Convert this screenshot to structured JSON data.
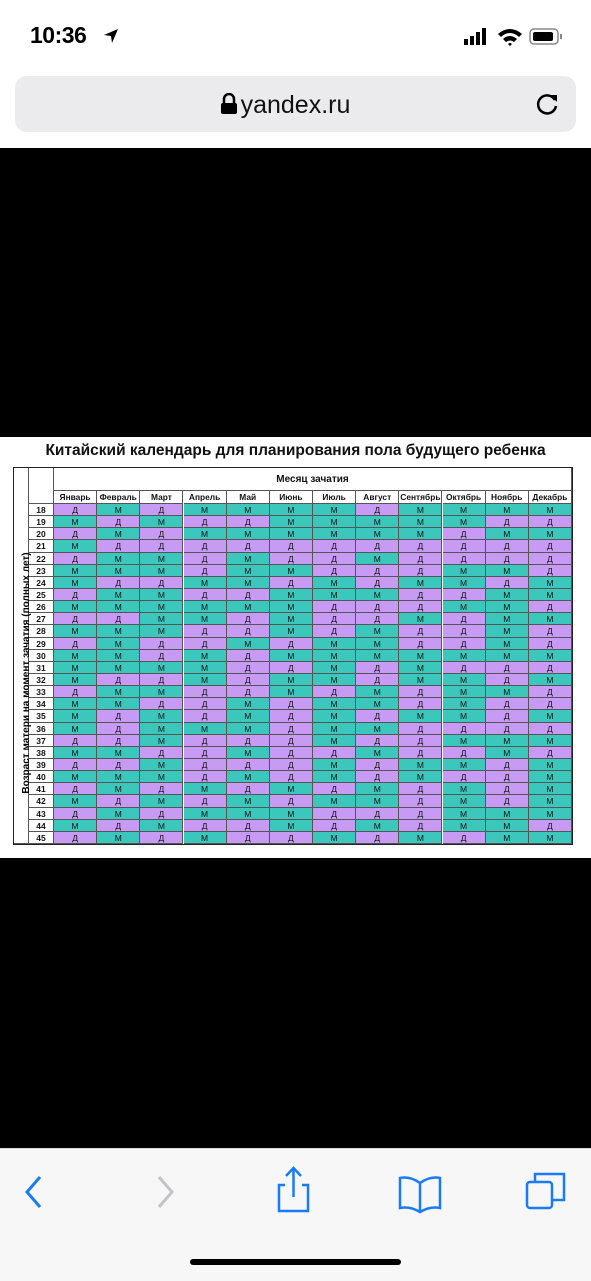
{
  "status": {
    "time": "10:36"
  },
  "browser": {
    "url": "yandex.ru"
  },
  "table": {
    "title": "Китайский календарь для планирования пола будущего ребенка",
    "column_group": "Месяц зачатия",
    "row_group": "Возраст матери на момент зачатия (полных лет)",
    "months": [
      "Январь",
      "Февраль",
      "Март",
      "Апрель",
      "Май",
      "Июнь",
      "Июль",
      "Август",
      "Сентябрь",
      "Октябрь",
      "Ноябрь",
      "Декабрь"
    ],
    "rows": [
      {
        "age": "18",
        "cells": [
          "Д",
          "М",
          "Д",
          "М",
          "М",
          "М",
          "М",
          "Д",
          "М",
          "М",
          "М",
          "М"
        ]
      },
      {
        "age": "19",
        "cells": [
          "М",
          "Д",
          "М",
          "Д",
          "Д",
          "М",
          "М",
          "М",
          "М",
          "М",
          "Д",
          "Д"
        ]
      },
      {
        "age": "20",
        "cells": [
          "Д",
          "М",
          "Д",
          "М",
          "М",
          "М",
          "М",
          "М",
          "М",
          "Д",
          "М",
          "М"
        ]
      },
      {
        "age": "21",
        "cells": [
          "М",
          "Д",
          "Д",
          "Д",
          "Д",
          "Д",
          "Д",
          "Д",
          "Д",
          "Д",
          "Д",
          "Д"
        ]
      },
      {
        "age": "22",
        "cells": [
          "Д",
          "М",
          "М",
          "Д",
          "М",
          "Д",
          "Д",
          "М",
          "Д",
          "Д",
          "Д",
          "Д"
        ]
      },
      {
        "age": "23",
        "cells": [
          "М",
          "М",
          "М",
          "Д",
          "М",
          "М",
          "Д",
          "Д",
          "Д",
          "М",
          "М",
          "Д"
        ]
      },
      {
        "age": "24",
        "cells": [
          "М",
          "Д",
          "Д",
          "М",
          "М",
          "Д",
          "М",
          "Д",
          "М",
          "М",
          "Д",
          "М"
        ]
      },
      {
        "age": "25",
        "cells": [
          "Д",
          "М",
          "М",
          "Д",
          "Д",
          "М",
          "М",
          "М",
          "Д",
          "Д",
          "М",
          "М"
        ]
      },
      {
        "age": "26",
        "cells": [
          "М",
          "М",
          "М",
          "М",
          "М",
          "М",
          "Д",
          "Д",
          "Д",
          "М",
          "М",
          "Д"
        ]
      },
      {
        "age": "27",
        "cells": [
          "Д",
          "Д",
          "М",
          "М",
          "Д",
          "М",
          "Д",
          "Д",
          "М",
          "Д",
          "М",
          "М"
        ]
      },
      {
        "age": "28",
        "cells": [
          "М",
          "М",
          "М",
          "Д",
          "Д",
          "М",
          "Д",
          "М",
          "Д",
          "Д",
          "М",
          "Д"
        ]
      },
      {
        "age": "29",
        "cells": [
          "Д",
          "М",
          "Д",
          "Д",
          "М",
          "Д",
          "М",
          "М",
          "Д",
          "Д",
          "М",
          "Д"
        ]
      },
      {
        "age": "30",
        "cells": [
          "М",
          "М",
          "Д",
          "М",
          "Д",
          "М",
          "М",
          "М",
          "М",
          "М",
          "М",
          "М"
        ]
      },
      {
        "age": "31",
        "cells": [
          "М",
          "М",
          "М",
          "М",
          "Д",
          "Д",
          "М",
          "Д",
          "М",
          "Д",
          "Д",
          "Д"
        ]
      },
      {
        "age": "32",
        "cells": [
          "М",
          "Д",
          "Д",
          "М",
          "Д",
          "М",
          "М",
          "Д",
          "М",
          "М",
          "Д",
          "М"
        ]
      },
      {
        "age": "33",
        "cells": [
          "Д",
          "М",
          "М",
          "Д",
          "Д",
          "М",
          "Д",
          "М",
          "Д",
          "М",
          "М",
          "Д"
        ]
      },
      {
        "age": "34",
        "cells": [
          "М",
          "М",
          "Д",
          "Д",
          "М",
          "Д",
          "М",
          "М",
          "Д",
          "М",
          "Д",
          "Д"
        ]
      },
      {
        "age": "35",
        "cells": [
          "М",
          "Д",
          "М",
          "Д",
          "М",
          "Д",
          "М",
          "Д",
          "М",
          "М",
          "Д",
          "М"
        ]
      },
      {
        "age": "36",
        "cells": [
          "М",
          "Д",
          "М",
          "М",
          "М",
          "Д",
          "М",
          "М",
          "Д",
          "Д",
          "Д",
          "Д"
        ]
      },
      {
        "age": "37",
        "cells": [
          "Д",
          "Д",
          "М",
          "Д",
          "Д",
          "Д",
          "М",
          "Д",
          "Д",
          "М",
          "М",
          "М"
        ]
      },
      {
        "age": "38",
        "cells": [
          "М",
          "М",
          "Д",
          "Д",
          "М",
          "Д",
          "Д",
          "М",
          "Д",
          "Д",
          "М",
          "Д"
        ]
      },
      {
        "age": "39",
        "cells": [
          "Д",
          "Д",
          "М",
          "Д",
          "Д",
          "Д",
          "М",
          "Д",
          "М",
          "М",
          "Д",
          "М"
        ]
      },
      {
        "age": "40",
        "cells": [
          "М",
          "М",
          "М",
          "Д",
          "М",
          "Д",
          "М",
          "Д",
          "М",
          "Д",
          "Д",
          "М"
        ]
      },
      {
        "age": "41",
        "cells": [
          "Д",
          "М",
          "Д",
          "М",
          "Д",
          "М",
          "Д",
          "М",
          "Д",
          "М",
          "Д",
          "М"
        ]
      },
      {
        "age": "42",
        "cells": [
          "М",
          "Д",
          "М",
          "Д",
          "М",
          "Д",
          "М",
          "М",
          "Д",
          "М",
          "Д",
          "М"
        ]
      },
      {
        "age": "43",
        "cells": [
          "Д",
          "М",
          "Д",
          "М",
          "М",
          "М",
          "Д",
          "Д",
          "Д",
          "М",
          "М",
          "М"
        ]
      },
      {
        "age": "44",
        "cells": [
          "М",
          "Д",
          "М",
          "Д",
          "Д",
          "М",
          "Д",
          "М",
          "Д",
          "М",
          "М",
          "Д"
        ]
      },
      {
        "age": "45",
        "cells": [
          "Д",
          "М",
          "Д",
          "М",
          "Д",
          "Д",
          "М",
          "Д",
          "М",
          "Д",
          "М",
          "М"
        ]
      }
    ]
  }
}
